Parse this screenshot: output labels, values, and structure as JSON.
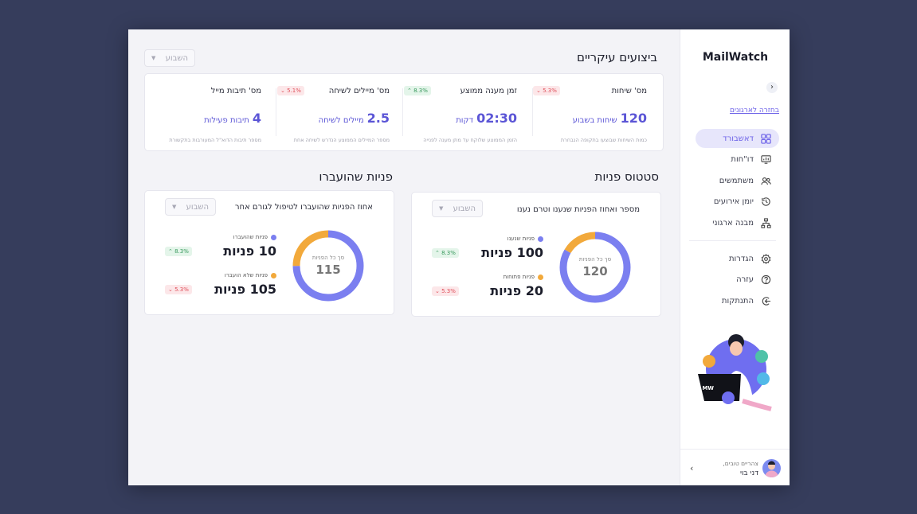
{
  "app": {
    "title": "MailWatch"
  },
  "sidebar": {
    "collapse_icon": "chevron-left-icon",
    "org_link": "בחזרה לארגונים",
    "items": [
      {
        "label": "דאשבורד",
        "icon": "grid-icon",
        "active": true
      },
      {
        "label": "דו\"חות",
        "icon": "report-icon"
      },
      {
        "label": "משתמשים",
        "icon": "users-icon"
      },
      {
        "label": "יומן אירועים",
        "icon": "history-icon"
      },
      {
        "label": "מבנה ארגוני",
        "icon": "org-chart-icon"
      }
    ],
    "bottom_items": [
      {
        "label": "הגדרות",
        "icon": "gear-icon"
      },
      {
        "label": "עזרה",
        "icon": "help-icon"
      },
      {
        "label": "התנתקות",
        "icon": "logout-icon"
      }
    ],
    "user": {
      "greeting": "צהריים טובים,",
      "name": "דני בוי"
    }
  },
  "kpi_section": {
    "title": "ביצועים עיקריים",
    "period": "השבוע",
    "cards": [
      {
        "title": "מס' שיחות",
        "badge": "5.3%",
        "trend": "down",
        "value": "120",
        "unit": "שיחות בשבוע",
        "desc": "כמות השיחות שבוצעו בתקופה הנבחרת"
      },
      {
        "title": "זמן מענה ממוצע",
        "badge": "8.3%",
        "trend": "up",
        "value": "02:30",
        "unit": "דקות",
        "desc": "הזמן הממוצע שלוקח עד מתן מענה לפנייה"
      },
      {
        "title": "מס' מיילים לשיחה",
        "badge": "5.1%",
        "trend": "down",
        "value": "2.5",
        "unit": "מיילים לשיחה",
        "desc": "מספר המיילים הממוצע הנדרש לשיחה אחת"
      },
      {
        "title": "מס' תיבות מייל",
        "badge": "",
        "trend": "",
        "value": "4",
        "unit": "תיבות פעילות",
        "desc": "מספר תיבות הדוא\"ל המעורבות בתקשורת"
      }
    ]
  },
  "status_section": {
    "title": "סטטוס פניות",
    "subtitle": "מספר ואחוז הפניות שנענו וטרם נענו",
    "period": "השבוע",
    "donut_label": "סך כל הפניות",
    "total": "120",
    "legend": [
      {
        "label": "פניות שנענו",
        "value": "100 פניות",
        "badge": "8.3%",
        "trend": "up",
        "color": "#7b7ff0"
      },
      {
        "label": "פניות פתוחות",
        "value": "20 פניות",
        "badge": "5.3%",
        "trend": "down",
        "color": "#f2a93b"
      }
    ]
  },
  "transfer_section": {
    "title": "פניות שהועברו",
    "subtitle": "אחוז הפניות שהועברו לטיפול לגורם אחר",
    "period": "השבוע",
    "donut_label": "סך כל הפניות",
    "total": "115",
    "legend": [
      {
        "label": "פניות שהועברו",
        "value": "10 פניות",
        "badge": "8.3%",
        "trend": "up",
        "color": "#7b7ff0"
      },
      {
        "label": "פניות שלא הועברו",
        "value": "105 פניות",
        "badge": "5.3%",
        "trend": "down",
        "color": "#f2a93b"
      }
    ]
  },
  "illustration": {
    "label": "MW"
  }
}
